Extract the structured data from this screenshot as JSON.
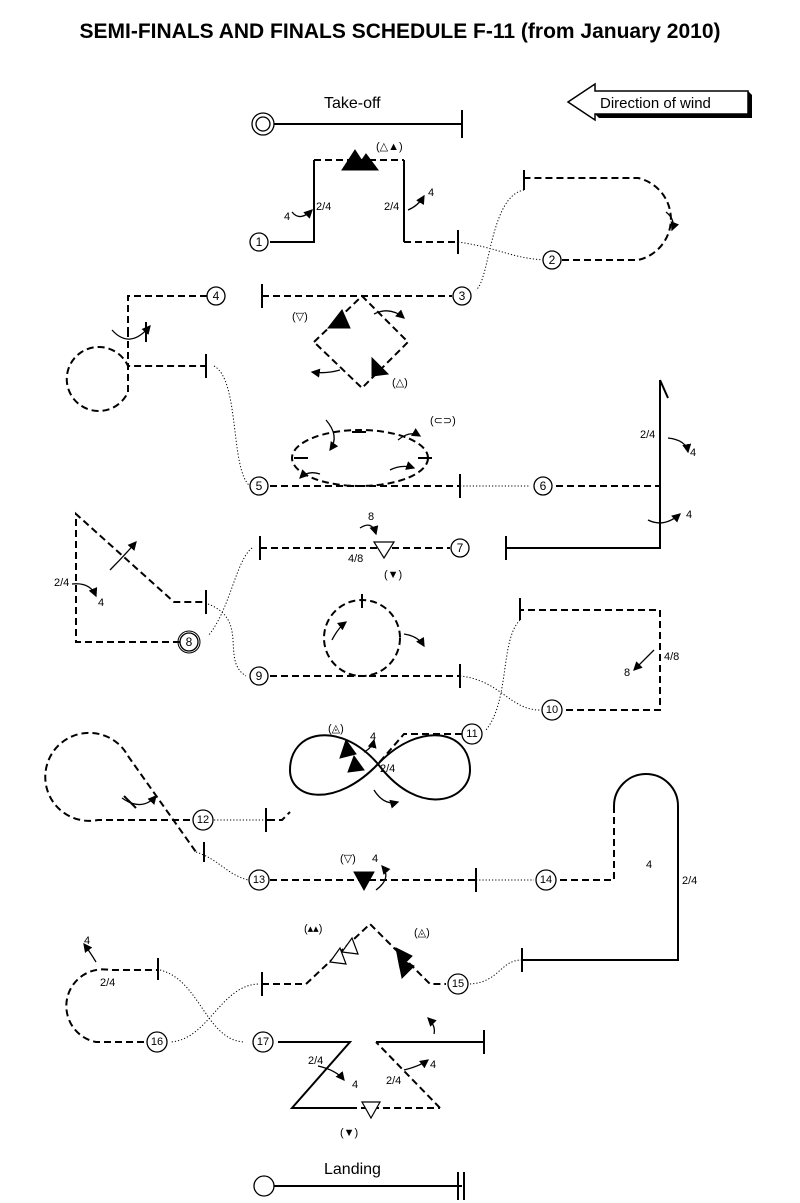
{
  "title": "SEMI-FINALS AND FINALS SCHEDULE F-11 (from January 2010)",
  "takeoff_label": "Take-off",
  "landing_label": "Landing",
  "wind_label": "Direction of wind",
  "rolls": {
    "two_quarter": "2/4",
    "four_eighth": "4/8",
    "four": "4",
    "eight": "8"
  },
  "stations": [
    "1",
    "2",
    "3",
    "4",
    "5",
    "6",
    "7",
    "8",
    "9",
    "10",
    "11",
    "12",
    "13",
    "14",
    "15",
    "16",
    "17"
  ]
}
